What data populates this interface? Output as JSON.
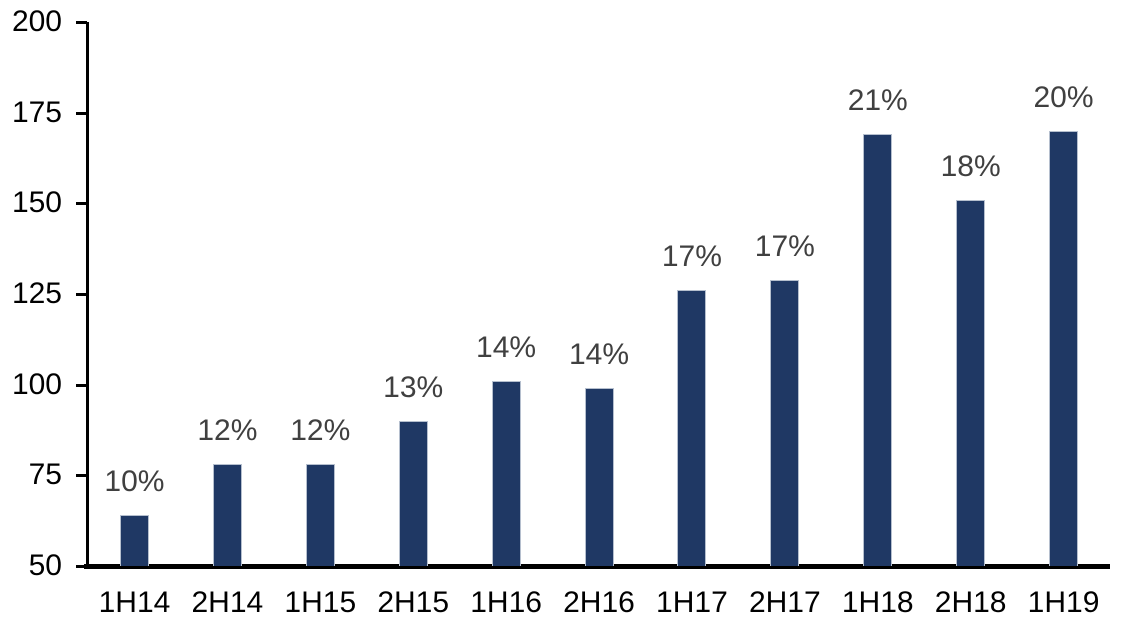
{
  "chart_data": {
    "type": "bar",
    "title": "",
    "xlabel": "",
    "ylabel": "",
    "categories": [
      "1H14",
      "2H14",
      "1H15",
      "2H15",
      "1H16",
      "2H16",
      "1H17",
      "2H17",
      "1H18",
      "2H18",
      "1H19"
    ],
    "values": [
      64,
      78,
      78,
      90,
      101,
      99,
      126,
      129,
      169,
      151,
      170
    ],
    "bar_labels": [
      "10%",
      "12%",
      "12%",
      "13%",
      "14%",
      "14%",
      "17%",
      "17%",
      "21%",
      "18%",
      "20%"
    ],
    "ylim": [
      50,
      200
    ],
    "yticks": [
      50,
      75,
      100,
      125,
      150,
      175,
      200
    ],
    "grid": false,
    "legend": false,
    "colors": {
      "bar_fill": "#1F3864",
      "bar_border": "#B5BFCE",
      "bar_label_text": "#404040",
      "axis": "#000000",
      "tick_text": "#000000",
      "background": "#FFFFFF"
    }
  }
}
